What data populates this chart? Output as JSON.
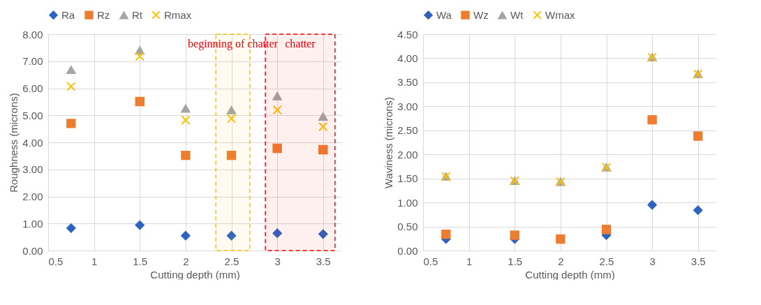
{
  "chart_data": [
    {
      "type": "scatter",
      "xlabel": "Cutting depth (mm)",
      "ylabel": "Roughness (microns)",
      "xlim": [
        0.5,
        3.7
      ],
      "xticks": [
        0.5,
        1,
        1.5,
        2,
        2.5,
        3,
        3.5
      ],
      "ylim": [
        0,
        8
      ],
      "yticks": [
        {
          "value": 0,
          "label": "0.00"
        },
        {
          "value": 1,
          "label": "1.00"
        },
        {
          "value": 2,
          "label": "2.00"
        },
        {
          "value": 3,
          "label": "3.00"
        },
        {
          "value": 4,
          "label": "4.00"
        },
        {
          "value": 5,
          "label": "5.00"
        },
        {
          "value": 6,
          "label": "6.00"
        },
        {
          "value": 7,
          "label": "7.00"
        },
        {
          "value": 8,
          "label": "8.00"
        }
      ],
      "grid": true,
      "legend": "top",
      "x": [
        0.75,
        1.5,
        2,
        2.5,
        3,
        3.5
      ],
      "series": [
        {
          "name": "Ra",
          "color": "#2e64c0",
          "marker": "diamond",
          "values": [
            0.83,
            0.94,
            0.55,
            0.55,
            0.64,
            0.61
          ]
        },
        {
          "name": "Rz",
          "color": "#ed7d31",
          "marker": "square",
          "values": [
            4.7,
            5.51,
            3.52,
            3.52,
            3.78,
            3.73
          ]
        },
        {
          "name": "Rt",
          "color": "#a5a5a5",
          "marker": "triangle",
          "values": [
            6.68,
            7.4,
            5.25,
            5.19,
            5.71,
            4.95
          ]
        },
        {
          "name": "Rmax",
          "color": "#ffc000",
          "marker": "cross",
          "values": [
            6.07,
            7.18,
            4.82,
            4.88,
            5.2,
            4.58
          ]
        }
      ],
      "bands": [
        {
          "axis": "x",
          "from": 2.33,
          "to": 2.7,
          "color": "#ffc000",
          "label": "beginning of chatter"
        },
        {
          "axis": "x",
          "from": 2.87,
          "to": 3.63,
          "color": "#ff0000",
          "label": "chatter"
        }
      ]
    },
    {
      "type": "scatter",
      "xlabel": "Cutting depth (mm)",
      "ylabel": "Waviness (microns)",
      "xlim": [
        0.5,
        3.7
      ],
      "xticks": [
        0.5,
        1,
        1.5,
        2,
        2.5,
        3,
        3.5
      ],
      "ylim": [
        0,
        4.5
      ],
      "yticks": [
        {
          "value": 0,
          "label": "0.00"
        },
        {
          "value": 0.5,
          "label": "0.50"
        },
        {
          "value": 1,
          "label": "1.00"
        },
        {
          "value": 1.5,
          "label": "1.50"
        },
        {
          "value": 2,
          "label": "2.00"
        },
        {
          "value": 2.5,
          "label": "2.50"
        },
        {
          "value": 3,
          "label": "3.00"
        },
        {
          "value": 3.5,
          "label": "3.50"
        },
        {
          "value": 4,
          "label": "4.00"
        },
        {
          "value": 4.5,
          "label": "4.50"
        }
      ],
      "grid": true,
      "legend": "top",
      "x": [
        0.75,
        1.5,
        2,
        2.5,
        3,
        3.5
      ],
      "series": [
        {
          "name": "Wa",
          "color": "#2e64c0",
          "marker": "diamond",
          "values": [
            0.24,
            0.24,
            null,
            0.32,
            0.95,
            0.84
          ]
        },
        {
          "name": "Wz",
          "color": "#ed7d31",
          "marker": "square",
          "values": [
            0.34,
            0.32,
            0.24,
            0.44,
            2.72,
            2.38
          ]
        },
        {
          "name": "Wt",
          "color": "#a5a5a5",
          "marker": "triangle",
          "values": [
            1.54,
            1.45,
            1.43,
            1.73,
            4.02,
            3.67
          ]
        },
        {
          "name": "Wmax",
          "color": "#ffc000",
          "marker": "cross",
          "values": [
            1.54,
            1.45,
            1.43,
            1.73,
            4.02,
            3.67
          ]
        }
      ]
    }
  ]
}
